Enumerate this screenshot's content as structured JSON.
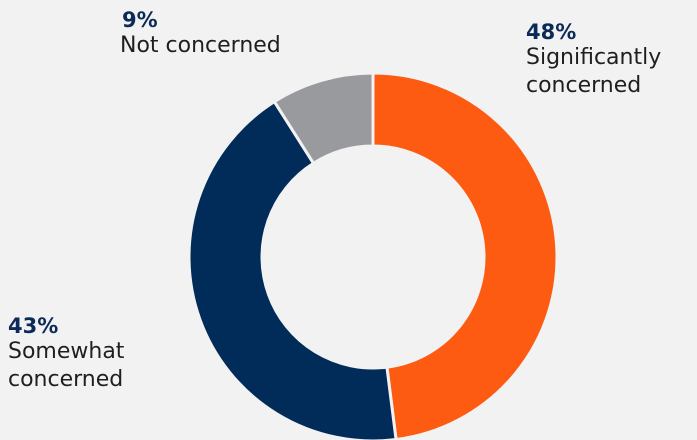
{
  "chart_data": {
    "type": "pie",
    "subtype": "donut",
    "slices": [
      {
        "label": "Significantly concerned",
        "display_label": "Significantly\nconcerned",
        "value": 48,
        "value_label": "48%",
        "color": "#fe5b12"
      },
      {
        "label": "Somewhat concerned",
        "display_label": "Somewhat\nconcerned",
        "value": 43,
        "value_label": "43%",
        "color": "#012b58"
      },
      {
        "label": "Not concerned",
        "display_label": "Not concerned",
        "value": 9,
        "value_label": "9%",
        "color": "#999a9e"
      }
    ],
    "start_angle_deg": 0,
    "direction": "clockwise"
  }
}
